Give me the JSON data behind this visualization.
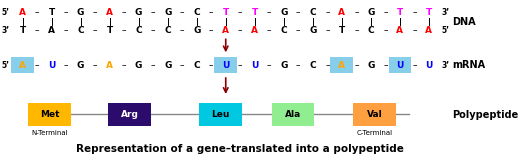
{
  "background_color": "#ffffff",
  "title": "Representation of a gene–translated into a polypeptide",
  "title_fontsize": 7.5,
  "dna_top_label": "5’",
  "dna_top_end": "3’",
  "dna_top_bases": [
    "A",
    "T",
    "G",
    "A",
    "G",
    "G",
    "C",
    "T",
    "T",
    "G",
    "C",
    "A",
    "G",
    "T",
    "T"
  ],
  "dna_top_colors": [
    "red",
    "black",
    "black",
    "red",
    "black",
    "black",
    "black",
    "magenta",
    "magenta",
    "black",
    "black",
    "red",
    "black",
    "magenta",
    "magenta"
  ],
  "dna_bot_label": "3’",
  "dna_bot_end": "5’",
  "dna_bot_bases": [
    "T",
    "A",
    "C",
    "T",
    "C",
    "C",
    "G",
    "A",
    "A",
    "C",
    "G",
    "T",
    "C",
    "A",
    "A"
  ],
  "dna_bot_colors": [
    "black",
    "black",
    "black",
    "black",
    "black",
    "black",
    "black",
    "red",
    "red",
    "black",
    "black",
    "black",
    "black",
    "red",
    "red"
  ],
  "dna_label": "DNA",
  "mrna_label": "5’",
  "mrna_end": "3’",
  "mrna_label_text": "mRNA",
  "mrna_bases": [
    "A",
    "U",
    "G",
    "A",
    "G",
    "G",
    "C",
    "U",
    "U",
    "G",
    "C",
    "A",
    "G",
    "U",
    "U"
  ],
  "mrna_colors": [
    "orange",
    "blue",
    "black",
    "orange",
    "black",
    "black",
    "black",
    "blue",
    "blue",
    "black",
    "black",
    "orange",
    "black",
    "blue",
    "blue"
  ],
  "mrna_highlights": [
    true,
    false,
    false,
    false,
    false,
    false,
    false,
    true,
    false,
    false,
    false,
    true,
    false,
    true,
    false
  ],
  "mrna_highlight_color": "#87CEEB",
  "polypeptide_label": "Polypeptide",
  "amino_acids": [
    "Met",
    "Arg",
    "Leu",
    "Ala",
    "Val"
  ],
  "amino_colors": [
    "#FFB700",
    "#2B0B6B",
    "#00C8E0",
    "#90EE90",
    "#FFA040"
  ],
  "amino_text_colors": [
    "black",
    "white",
    "black",
    "black",
    "black"
  ],
  "n_terminal": "N-Terminal",
  "c_terminal": "C-Terminal",
  "arrow_color": "#8B0000",
  "line_color": "#888888"
}
